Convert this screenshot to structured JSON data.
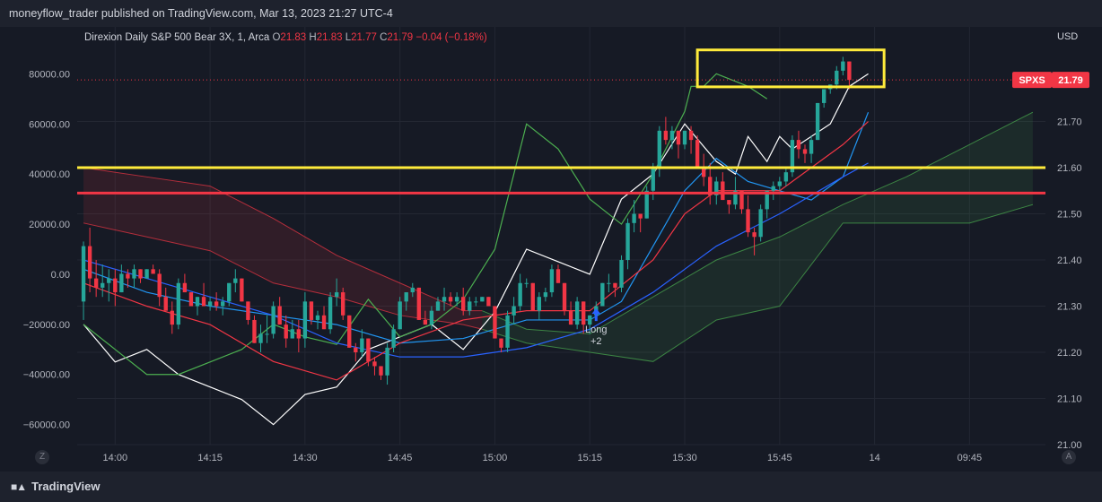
{
  "header": {
    "publish_text": "moneyflow_trader published on TradingView.com, Mar 13, 2023 21:27 UTC-4"
  },
  "legend": {
    "symbol_text": "Direxion Daily S&P 500 Bear 3X, 1, Arca",
    "o_label": "O",
    "o_value": "21.83",
    "h_label": "H",
    "h_value": "21.83",
    "l_label": "L",
    "l_value": "21.77",
    "c_label": "C",
    "c_value": "21.79",
    "change": "−0.04 (−0.18%)"
  },
  "currency": "USD",
  "price_tag": {
    "symbol": "SPXS",
    "price": "21.79",
    "color": "#f23645"
  },
  "signal": {
    "line1": "Long",
    "line2": "+2"
  },
  "footer": {
    "brand": "TradingView",
    "left_button": "Z",
    "right_button": "A"
  },
  "colors": {
    "up": "#26a69a",
    "down": "#f23645",
    "yellow": "#ffeb3b",
    "red_line": "#f23645",
    "white_line": "#ffffff",
    "blue_fast": "#2196f3",
    "blue_slow": "#2962ff",
    "green_line": "#4caf50"
  },
  "chart_data": {
    "type": "candlestick",
    "left_axis": {
      "ticks": [
        "80000.00",
        "60000.00",
        "40000.00",
        "20000.00",
        "0.00",
        "−20000.00",
        "−40000.00",
        "−60000.00"
      ],
      "values": [
        80000,
        60000,
        40000,
        20000,
        0,
        -20000,
        -40000,
        -60000
      ],
      "range": [
        -68000,
        88000
      ]
    },
    "right_axis": {
      "ticks": [
        "21.70",
        "21.60",
        "21.50",
        "21.40",
        "21.30",
        "21.20",
        "21.10",
        "21.00"
      ],
      "values": [
        21.7,
        21.6,
        21.5,
        21.4,
        21.3,
        21.2,
        21.1,
        21.0
      ],
      "range": [
        21.0,
        21.835
      ]
    },
    "time_axis": {
      "labels": [
        "14:00",
        "14:15",
        "14:30",
        "14:45",
        "15:00",
        "15:15",
        "15:30",
        "15:45",
        "14",
        "09:45"
      ],
      "positions": [
        5,
        20,
        35,
        50,
        65,
        80,
        95,
        110,
        125,
        140
      ]
    },
    "x_range": [
      -1,
      152
    ],
    "last_price": 21.79,
    "horizontal_lines": [
      {
        "name": "yellow-level",
        "price": 21.6,
        "color": "#ffeb3b"
      },
      {
        "name": "red-level",
        "price": 21.545,
        "color": "#f23645"
      }
    ],
    "highlight_box": {
      "x": [
        97,
        126.5
      ],
      "price": [
        21.775,
        21.855
      ],
      "color": "#ffeb3b"
    },
    "signal_x": 81,
    "signal_price": 21.295,
    "candles": [
      [
        21.31,
        21.44,
        21.27,
        21.43
      ],
      [
        21.43,
        21.47,
        21.33,
        21.36
      ],
      [
        21.36,
        21.4,
        21.32,
        21.34
      ],
      [
        21.34,
        21.39,
        21.32,
        21.35
      ],
      [
        21.35,
        21.38,
        21.31,
        21.36
      ],
      [
        21.36,
        21.38,
        21.3,
        21.33
      ],
      [
        21.33,
        21.39,
        21.33,
        21.37
      ],
      [
        21.37,
        21.38,
        21.34,
        21.36
      ],
      [
        21.36,
        21.39,
        21.34,
        21.38
      ],
      [
        21.38,
        21.38,
        21.35,
        21.36
      ],
      [
        21.36,
        21.38,
        21.36,
        21.38
      ],
      [
        21.38,
        21.39,
        21.37,
        21.37
      ],
      [
        21.37,
        21.38,
        21.3,
        21.32
      ],
      [
        21.32,
        21.34,
        21.29,
        21.29
      ],
      [
        21.29,
        21.31,
        21.24,
        21.26
      ],
      [
        21.26,
        21.36,
        21.25,
        21.35
      ],
      [
        21.35,
        21.37,
        21.33,
        21.33
      ],
      [
        21.33,
        21.33,
        21.3,
        21.3
      ],
      [
        21.3,
        21.32,
        21.28,
        21.32
      ],
      [
        21.32,
        21.35,
        21.3,
        21.3
      ],
      [
        21.3,
        21.32,
        21.29,
        21.31
      ],
      [
        21.31,
        21.33,
        21.29,
        21.3
      ],
      [
        21.3,
        21.32,
        21.28,
        21.31
      ],
      [
        21.31,
        21.35,
        21.3,
        21.35
      ],
      [
        21.35,
        21.38,
        21.33,
        21.36
      ],
      [
        21.36,
        21.36,
        21.31,
        21.31
      ],
      [
        21.31,
        21.31,
        21.26,
        21.27
      ],
      [
        21.27,
        21.28,
        21.22,
        21.22
      ],
      [
        21.22,
        21.26,
        21.2,
        21.24
      ],
      [
        21.24,
        21.28,
        21.22,
        21.24
      ],
      [
        21.24,
        21.31,
        21.23,
        21.3
      ],
      [
        21.3,
        21.32,
        21.26,
        21.26
      ],
      [
        21.26,
        21.28,
        21.21,
        21.23
      ],
      [
        21.23,
        21.27,
        21.23,
        21.25
      ],
      [
        21.25,
        21.27,
        21.2,
        21.23
      ],
      [
        21.23,
        21.33,
        21.21,
        21.31
      ],
      [
        21.31,
        21.31,
        21.26,
        21.27
      ],
      [
        21.27,
        21.29,
        21.25,
        21.28
      ],
      [
        21.28,
        21.3,
        21.25,
        21.25
      ],
      [
        21.25,
        21.33,
        21.24,
        21.32
      ],
      [
        21.32,
        21.36,
        21.3,
        21.33
      ],
      [
        21.33,
        21.34,
        21.27,
        21.28
      ],
      [
        21.28,
        21.28,
        21.21,
        21.21
      ],
      [
        21.21,
        21.22,
        21.18,
        21.2
      ],
      [
        21.2,
        21.25,
        21.19,
        21.23
      ],
      [
        21.23,
        21.23,
        21.17,
        21.18
      ],
      [
        21.18,
        21.19,
        21.15,
        21.17
      ],
      [
        21.17,
        21.17,
        21.14,
        21.15
      ],
      [
        21.15,
        21.22,
        21.13,
        21.21
      ],
      [
        21.21,
        21.26,
        21.2,
        21.25
      ],
      [
        21.25,
        21.32,
        21.25,
        21.31
      ],
      [
        21.31,
        21.33,
        21.29,
        21.33
      ],
      [
        21.33,
        21.35,
        21.32,
        21.34
      ],
      [
        21.34,
        21.34,
        21.27,
        21.27
      ],
      [
        21.27,
        21.29,
        21.26,
        21.26
      ],
      [
        21.26,
        21.3,
        21.25,
        21.29
      ],
      [
        21.29,
        21.32,
        21.29,
        21.31
      ],
      [
        21.31,
        21.34,
        21.29,
        21.32
      ],
      [
        21.32,
        21.33,
        21.3,
        21.31
      ],
      [
        21.31,
        21.33,
        21.3,
        21.32
      ],
      [
        21.32,
        21.34,
        21.28,
        21.29
      ],
      [
        21.29,
        21.32,
        21.28,
        21.31
      ],
      [
        21.31,
        21.32,
        21.3,
        21.31
      ],
      [
        21.31,
        21.32,
        21.31,
        21.32
      ],
      [
        21.32,
        21.32,
        21.3,
        21.3
      ],
      [
        21.3,
        21.3,
        21.23,
        21.23
      ],
      [
        21.23,
        21.23,
        21.2,
        21.21
      ],
      [
        21.21,
        21.29,
        21.2,
        21.28
      ],
      [
        21.28,
        21.32,
        21.26,
        21.3
      ],
      [
        21.3,
        21.37,
        21.29,
        21.35
      ],
      [
        21.35,
        21.36,
        21.34,
        21.35
      ],
      [
        21.35,
        21.35,
        21.29,
        21.29
      ],
      [
        21.29,
        21.33,
        21.27,
        21.32
      ],
      [
        21.32,
        21.34,
        21.31,
        21.33
      ],
      [
        21.33,
        21.39,
        21.32,
        21.38
      ],
      [
        21.38,
        21.39,
        21.35,
        21.35
      ],
      [
        21.35,
        21.35,
        21.28,
        21.29
      ],
      [
        21.29,
        21.31,
        21.26,
        21.26
      ],
      [
        21.26,
        21.32,
        21.25,
        21.31
      ],
      [
        21.31,
        21.31,
        21.24,
        21.26
      ],
      [
        21.26,
        21.28,
        21.24,
        21.28
      ],
      [
        21.28,
        21.31,
        21.28,
        21.3
      ],
      [
        21.3,
        21.35,
        21.3,
        21.35
      ],
      [
        21.35,
        21.37,
        21.33,
        21.35
      ],
      [
        21.35,
        21.35,
        21.32,
        21.34
      ],
      [
        21.34,
        21.41,
        21.33,
        21.4
      ],
      [
        21.4,
        21.49,
        21.38,
        21.48
      ],
      [
        21.48,
        21.53,
        21.46,
        21.5
      ],
      [
        21.5,
        21.5,
        21.46,
        21.49
      ],
      [
        21.49,
        21.56,
        21.49,
        21.55
      ],
      [
        21.55,
        21.61,
        21.53,
        21.6
      ],
      [
        21.6,
        21.69,
        21.58,
        21.68
      ],
      [
        21.68,
        21.71,
        21.65,
        21.66
      ],
      [
        21.66,
        21.69,
        21.64,
        21.68
      ],
      [
        21.68,
        21.68,
        21.62,
        21.65
      ],
      [
        21.65,
        21.68,
        21.64,
        21.68
      ],
      [
        21.68,
        21.69,
        21.63,
        21.66
      ],
      [
        21.66,
        21.67,
        21.6,
        21.6
      ],
      [
        21.6,
        21.63,
        21.56,
        21.58
      ],
      [
        21.58,
        21.61,
        21.52,
        21.54
      ],
      [
        21.54,
        21.58,
        21.52,
        21.57
      ],
      [
        21.57,
        21.59,
        21.53,
        21.53
      ],
      [
        21.53,
        21.53,
        21.5,
        21.52
      ],
      [
        21.52,
        21.58,
        21.51,
        21.55
      ],
      [
        21.55,
        21.55,
        21.5,
        21.51
      ],
      [
        21.51,
        21.54,
        21.45,
        21.46
      ],
      [
        21.46,
        21.47,
        21.41,
        21.45
      ],
      [
        21.45,
        21.52,
        21.44,
        21.51
      ],
      [
        21.51,
        21.55,
        21.49,
        21.55
      ],
      [
        21.55,
        21.57,
        21.53,
        21.56
      ],
      [
        21.56,
        21.58,
        21.55,
        21.57
      ],
      [
        21.57,
        21.6,
        21.56,
        21.59
      ],
      [
        21.59,
        21.67,
        21.58,
        21.66
      ],
      [
        21.66,
        21.68,
        21.62,
        21.64
      ],
      [
        21.64,
        21.65,
        21.61,
        21.63
      ],
      [
        21.63,
        21.67,
        21.61,
        21.66
      ],
      [
        21.66,
        21.74,
        21.66,
        21.74
      ],
      [
        21.74,
        21.77,
        21.73,
        21.77
      ],
      [
        21.77,
        21.78,
        21.76,
        21.78
      ],
      [
        21.78,
        21.82,
        21.77,
        21.81
      ],
      [
        21.81,
        21.84,
        21.8,
        21.83
      ],
      [
        21.83,
        21.83,
        21.77,
        21.79
      ]
    ],
    "candle_x": [
      0,
      1,
      2,
      3,
      4,
      5,
      6,
      7,
      8,
      9,
      10,
      11,
      12,
      13,
      14,
      15,
      16,
      17,
      18,
      19,
      20,
      21,
      22,
      23,
      24,
      25,
      26,
      27,
      28,
      29,
      30,
      31,
      32,
      33,
      34,
      35,
      36,
      37,
      38,
      39,
      40,
      41,
      42,
      43,
      44,
      45,
      46,
      47,
      48,
      49,
      50,
      51,
      52,
      53,
      54,
      55,
      56,
      57,
      58,
      59,
      60,
      61,
      62,
      63,
      64,
      65,
      66,
      67,
      68,
      69,
      70,
      71,
      72,
      73,
      74,
      75,
      76,
      77,
      78,
      79,
      80,
      81,
      82,
      83,
      84,
      85,
      86,
      87,
      88,
      89,
      90,
      91,
      92,
      93,
      94,
      95,
      96,
      97,
      98,
      99,
      100,
      101,
      102,
      103,
      104,
      105,
      106,
      107,
      108,
      109,
      110,
      111,
      112,
      113,
      114,
      115,
      116,
      117,
      118,
      119,
      120,
      121,
      122,
      123,
      124
    ],
    "series": [
      {
        "name": "",
        "axis": "left",
        "color": "#ffffff",
        "x": [
          0,
          5,
          10,
          15,
          20,
          25,
          30,
          35,
          40,
          45,
          50,
          55,
          60,
          65,
          70,
          75,
          80,
          85,
          90,
          95,
          100,
          103,
          105,
          108,
          110,
          112,
          115,
          118,
          121,
          124
        ],
        "values": [
          -20000,
          -35000,
          -30000,
          -40000,
          -45000,
          -50000,
          -60000,
          -48000,
          -45000,
          -30000,
          -25000,
          -20000,
          -30000,
          -15000,
          10000,
          5000,
          0,
          30000,
          40000,
          60000,
          45000,
          40000,
          55000,
          45000,
          55000,
          50000,
          55000,
          60000,
          75000,
          80000
        ]
      },
      {
        "name": "",
        "axis": "left",
        "color": "#4caf50",
        "x": [
          0,
          5,
          10,
          15,
          20,
          25,
          30,
          35,
          40,
          45,
          50,
          55,
          60,
          65,
          70,
          75,
          80,
          85,
          90,
          95,
          96,
          98,
          100,
          105,
          108
        ],
        "values": [
          -20000,
          -30000,
          -40000,
          -40000,
          -35000,
          -30000,
          -20000,
          -25000,
          -28000,
          -10000,
          -25000,
          -20000,
          -10000,
          10000,
          60000,
          50000,
          30000,
          20000,
          40000,
          65000,
          75000,
          75000,
          80000,
          75000,
          70000
        ]
      },
      {
        "name": "",
        "axis": "right",
        "color": "#2196f3",
        "x": [
          0,
          10,
          20,
          30,
          40,
          50,
          60,
          70,
          80,
          85,
          90,
          95,
          100,
          105,
          110,
          115,
          120,
          124
        ],
        "values": [
          21.38,
          21.33,
          21.3,
          21.28,
          21.26,
          21.22,
          21.23,
          21.27,
          21.27,
          21.31,
          21.43,
          21.55,
          21.62,
          21.57,
          21.55,
          21.53,
          21.58,
          21.72
        ]
      },
      {
        "name": "",
        "axis": "right",
        "color": "#2962ff",
        "x": [
          0,
          10,
          20,
          30,
          40,
          50,
          60,
          70,
          80,
          90,
          100,
          110,
          120,
          124
        ],
        "values": [
          21.4,
          21.36,
          21.32,
          21.28,
          21.22,
          21.19,
          21.19,
          21.21,
          21.25,
          21.33,
          21.43,
          21.5,
          21.58,
          21.61
        ]
      },
      {
        "name": "",
        "axis": "right",
        "color": "#f23645",
        "x": [
          0,
          10,
          20,
          30,
          40,
          50,
          60,
          70,
          80,
          90,
          95,
          100,
          110,
          120,
          124
        ],
        "values": [
          21.35,
          21.3,
          21.26,
          21.18,
          21.14,
          21.22,
          21.27,
          21.29,
          21.29,
          21.4,
          21.5,
          21.55,
          21.55,
          21.65,
          21.7
        ]
      }
    ],
    "clouds": [
      {
        "name": "",
        "color": "#f23645",
        "x": [
          0,
          10,
          20,
          30,
          40,
          50,
          60,
          63
        ],
        "upper": [
          21.6,
          21.58,
          21.56,
          21.49,
          21.41,
          21.35,
          21.29,
          21.29
        ],
        "lower": [
          21.48,
          21.45,
          21.42,
          21.35,
          21.32,
          21.28,
          21.26,
          21.25
        ]
      },
      {
        "name": "",
        "color": "#4caf50",
        "x": [
          63,
          70,
          80,
          90,
          100,
          110,
          120,
          130,
          140,
          150
        ],
        "upper": [
          21.29,
          21.25,
          21.24,
          21.32,
          21.4,
          21.45,
          21.52,
          21.58,
          21.65,
          21.72
        ],
        "lower": [
          21.25,
          21.22,
          21.2,
          21.18,
          21.27,
          21.3,
          21.48,
          21.48,
          21.48,
          21.52
        ]
      }
    ]
  }
}
